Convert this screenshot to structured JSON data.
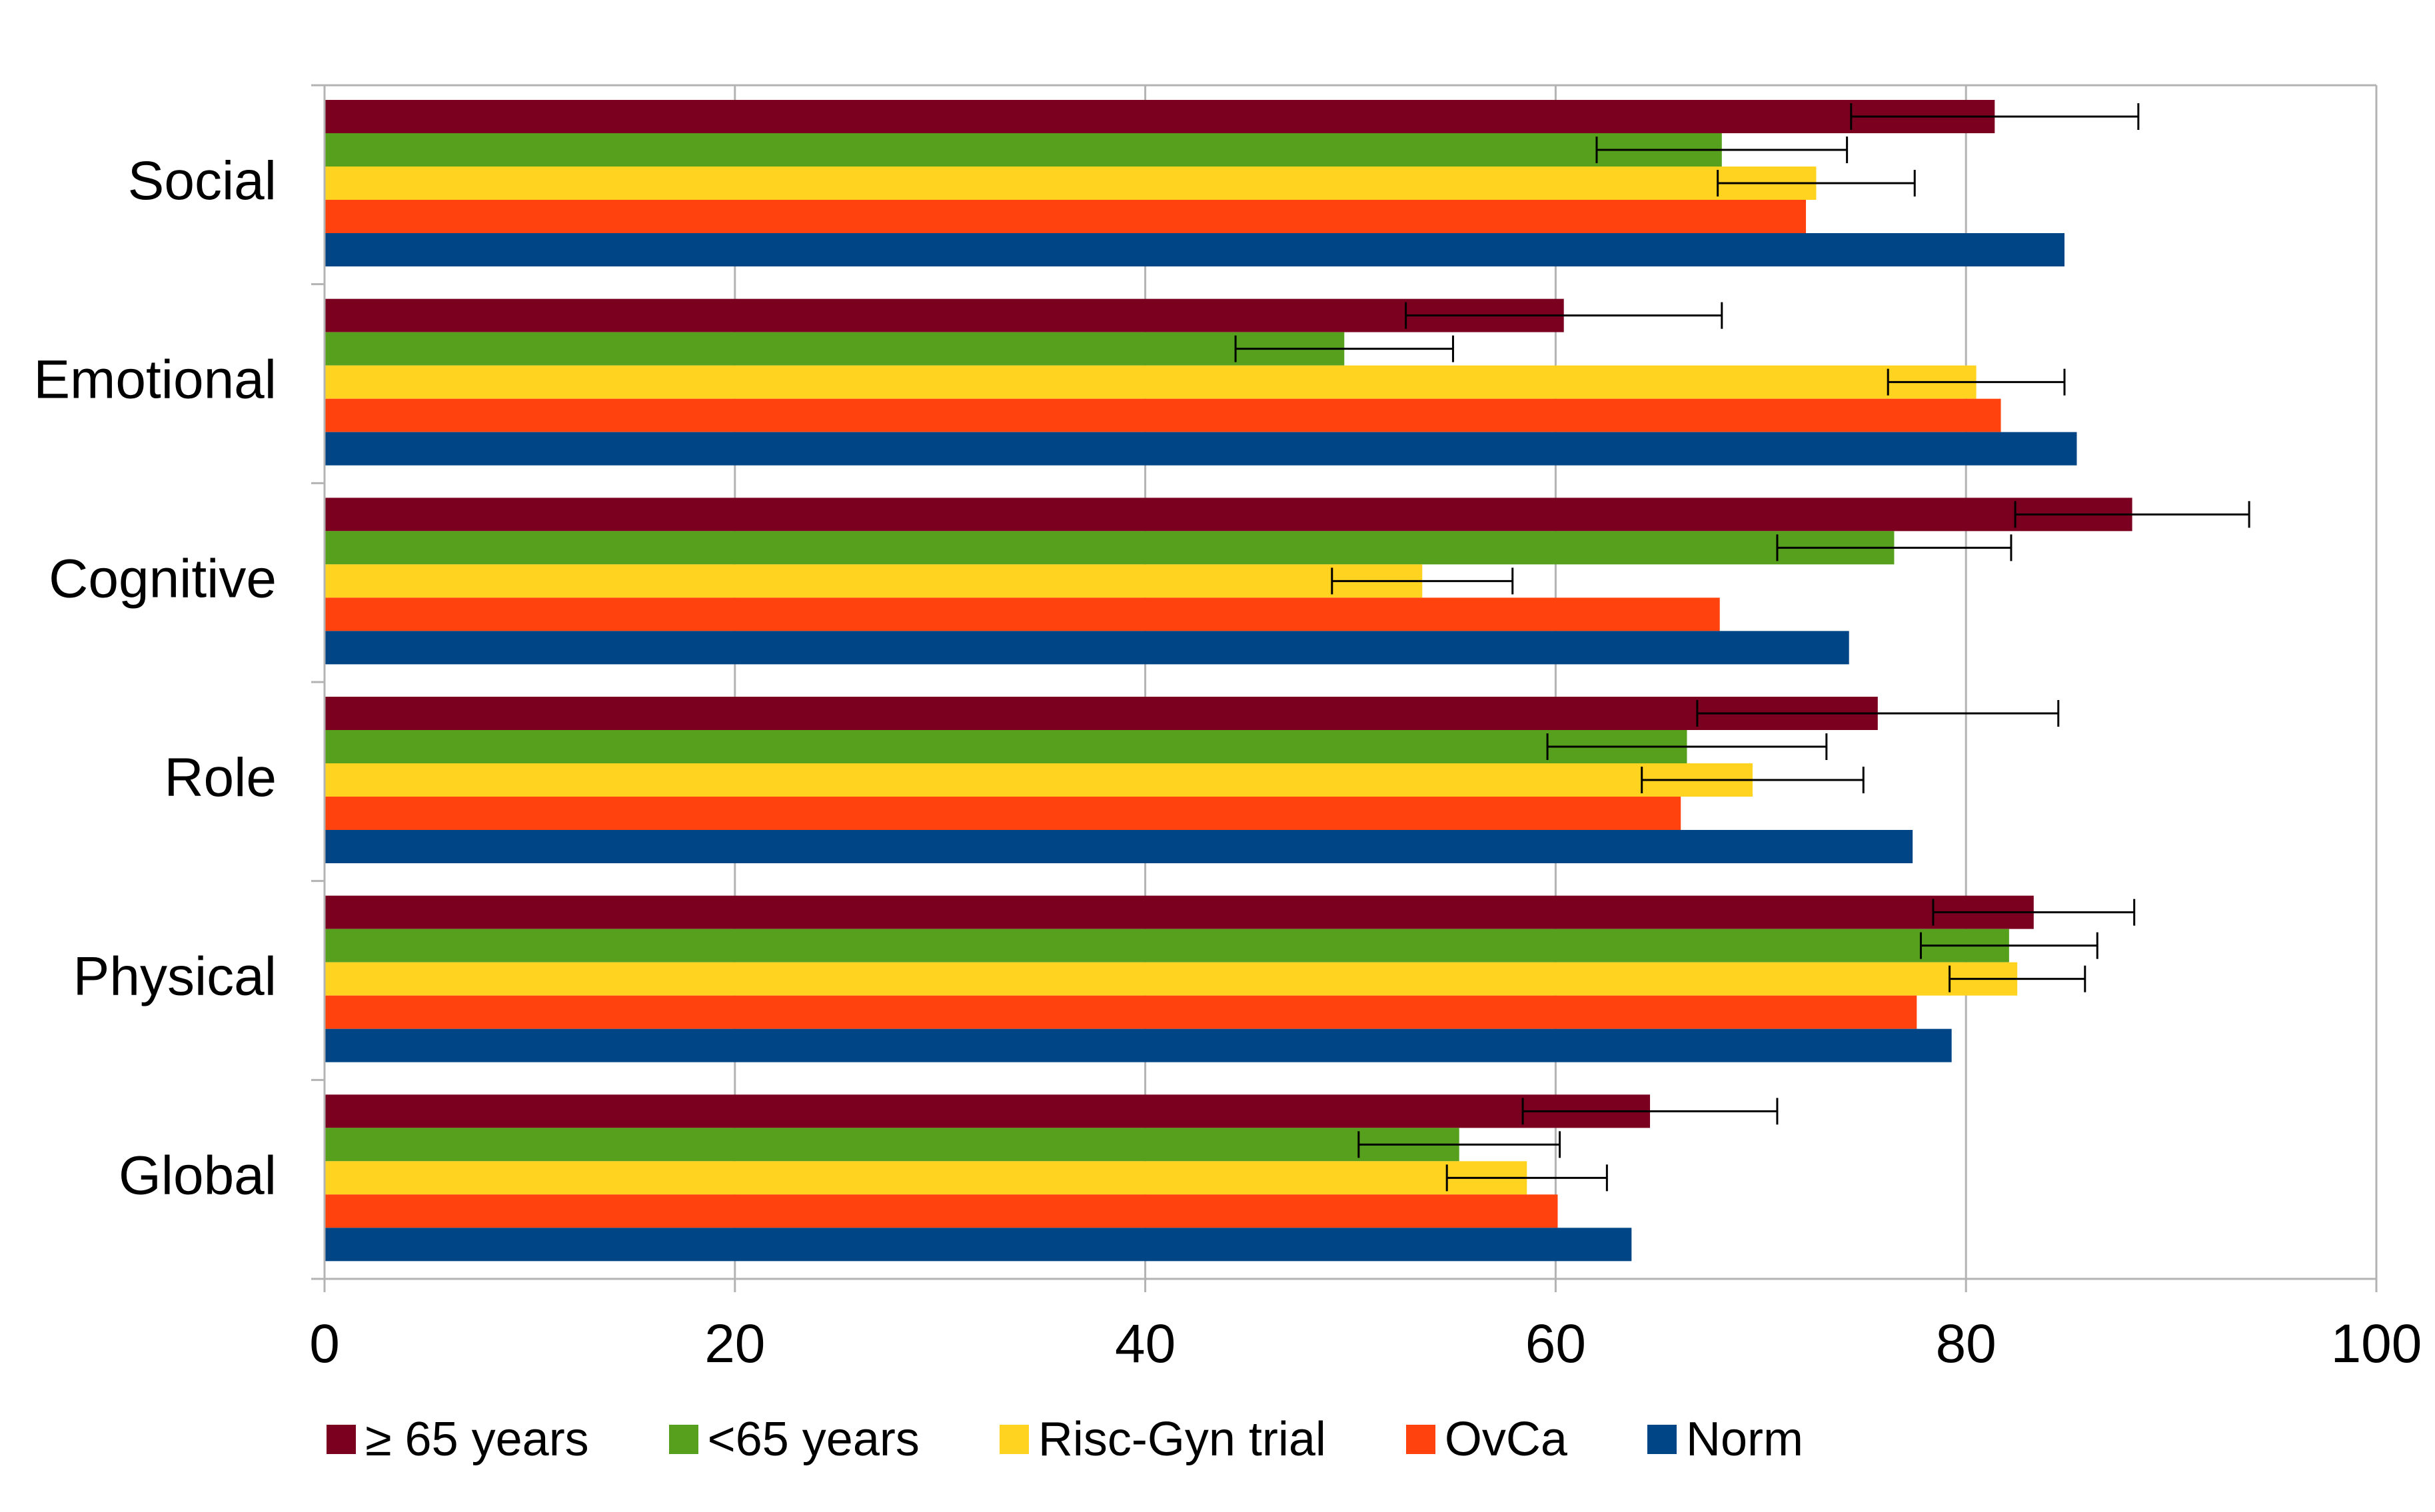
{
  "chart_data": {
    "type": "bar",
    "orientation": "horizontal",
    "title": "",
    "xlabel": "",
    "ylabel": "",
    "xlim": [
      0,
      100
    ],
    "x_ticks": [
      "0",
      "20",
      "40",
      "60",
      "80",
      "100"
    ],
    "grid": "vertical",
    "legend_position": "bottom",
    "categories": [
      "Social",
      "Emotional",
      "Cognitive",
      "Role",
      "Physical",
      "Global"
    ],
    "series": [
      {
        "name": "≥ 65 years",
        "color": "#7B0020",
        "values": [
          81.4,
          60.4,
          88.1,
          75.7,
          83.3,
          64.6
        ],
        "error": [
          7.0,
          7.7,
          5.7,
          8.8,
          4.9,
          6.2
        ]
      },
      {
        "name": "<65 years",
        "color": "#57A01E",
        "values": [
          68.1,
          49.7,
          76.5,
          66.4,
          82.1,
          55.3
        ],
        "error": [
          6.1,
          5.3,
          5.7,
          6.8,
          4.3,
          4.9
        ]
      },
      {
        "name": "Risc-Gyn trial",
        "color": "#FFD320",
        "values": [
          72.7,
          80.5,
          53.5,
          69.6,
          82.5,
          58.6
        ],
        "error": [
          4.8,
          4.3,
          4.4,
          5.4,
          3.3,
          3.9
        ]
      },
      {
        "name": "OvCa",
        "color": "#FF420E",
        "values": [
          72.2,
          81.7,
          68.0,
          66.1,
          77.6,
          60.1
        ],
        "error": null
      },
      {
        "name": "Norm",
        "color": "#004586",
        "values": [
          84.8,
          85.4,
          74.3,
          77.4,
          79.3,
          63.7
        ],
        "error": null
      }
    ]
  }
}
